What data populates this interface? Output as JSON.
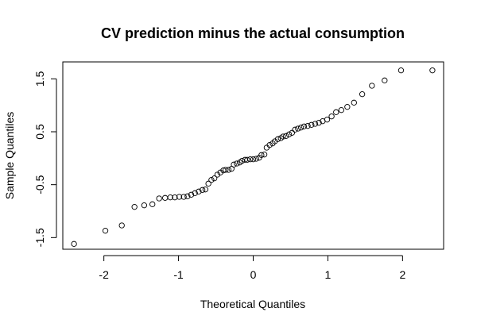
{
  "chart_data": {
    "type": "scatter",
    "title": "CV prediction minus the actual consumption",
    "xlabel": "Theoretical Quantiles",
    "ylabel": "Sample Quantiles",
    "xlim": [
      -2.55,
      2.55
    ],
    "ylim": [
      -1.72,
      1.82
    ],
    "x_ticks": [
      -2,
      -1,
      0,
      1,
      2
    ],
    "x_tick_labels": [
      "-2",
      "-1",
      "0",
      "1",
      "2"
    ],
    "y_ticks": [
      -1.5,
      -0.5,
      0.5,
      1.5
    ],
    "y_tick_labels": [
      "-1.5",
      "-0.5",
      "0.5",
      "1.5"
    ],
    "grid": false,
    "legend": "none",
    "marker": "open-circle",
    "series": [
      {
        "x": [
          -2.4,
          -1.98,
          -1.76,
          -1.59,
          -1.46,
          -1.35,
          -1.26,
          -1.18,
          -1.11,
          -1.05,
          -0.99,
          -0.93,
          -0.88,
          -0.83,
          -0.78,
          -0.73,
          -0.68,
          -0.64,
          -0.6,
          -0.56,
          -0.52,
          -0.48,
          -0.44,
          -0.4,
          -0.37,
          -0.33,
          -0.29,
          -0.26,
          -0.22,
          -0.18,
          -0.15,
          -0.11,
          -0.08,
          -0.04,
          0.0,
          0.04,
          0.08,
          0.11,
          0.15,
          0.18,
          0.22,
          0.26,
          0.29,
          0.33,
          0.37,
          0.4,
          0.44,
          0.48,
          0.52,
          0.56,
          0.6,
          0.64,
          0.68,
          0.73,
          0.78,
          0.83,
          0.88,
          0.93,
          0.99,
          1.05,
          1.11,
          1.18,
          1.26,
          1.35,
          1.46,
          1.59,
          1.76,
          1.98,
          2.4
        ],
        "y": [
          -1.62,
          -1.37,
          -1.27,
          -0.92,
          -0.89,
          -0.87,
          -0.76,
          -0.75,
          -0.74,
          -0.74,
          -0.73,
          -0.73,
          -0.72,
          -0.69,
          -0.66,
          -0.63,
          -0.6,
          -0.59,
          -0.48,
          -0.41,
          -0.38,
          -0.31,
          -0.27,
          -0.23,
          -0.22,
          -0.22,
          -0.2,
          -0.12,
          -0.1,
          -0.08,
          -0.05,
          -0.03,
          -0.03,
          -0.02,
          -0.02,
          -0.01,
          0.01,
          0.06,
          0.07,
          0.2,
          0.25,
          0.28,
          0.32,
          0.36,
          0.38,
          0.41,
          0.42,
          0.45,
          0.48,
          0.54,
          0.56,
          0.58,
          0.6,
          0.61,
          0.63,
          0.65,
          0.67,
          0.7,
          0.73,
          0.79,
          0.87,
          0.91,
          0.97,
          1.05,
          1.21,
          1.37,
          1.47,
          1.66,
          1.66
        ]
      }
    ]
  }
}
